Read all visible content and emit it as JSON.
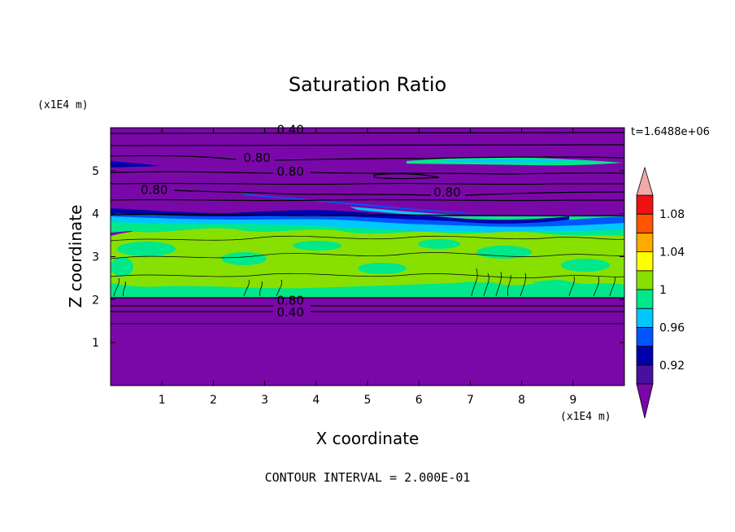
{
  "chart_data": {
    "type": "heatmap",
    "title": "Saturation Ratio",
    "xlabel": "X coordinate",
    "ylabel": "Z coordinate",
    "x_unit": "(x1E4 m)",
    "y_unit": "(x1E4 m)",
    "time_label": "t=1.6488e+06",
    "footer": "CONTOUR INTERVAL = 2.000E-01",
    "xlim": [
      0,
      10
    ],
    "ylim": [
      0,
      6
    ],
    "x_ticks": [
      "1",
      "2",
      "3",
      "4",
      "5",
      "6",
      "7",
      "8",
      "9"
    ],
    "y_ticks": [
      "1",
      "2",
      "3",
      "4",
      "5"
    ],
    "contour_labels": [
      {
        "text": "0.40",
        "x": 3.5,
        "z": 5.95
      },
      {
        "text": "0.80",
        "x": 2.85,
        "z": 5.3
      },
      {
        "text": "0.80",
        "x": 3.5,
        "z": 4.98
      },
      {
        "text": "0.80",
        "x": 0.85,
        "z": 4.55
      },
      {
        "text": "0.80",
        "x": 6.55,
        "z": 4.5
      },
      {
        "text": "0.80",
        "x": 3.5,
        "z": 1.98
      },
      {
        "text": "0.40",
        "x": 3.5,
        "z": 1.7
      }
    ],
    "colorbar": {
      "levels": [
        0.9,
        0.92,
        0.94,
        0.96,
        0.98,
        1.0,
        1.02,
        1.04,
        1.06,
        1.08,
        1.1
      ],
      "labels": [
        "0.92",
        "0.96",
        "1",
        "1.04",
        "1.08"
      ],
      "colors": [
        "#4b0fa0",
        "#0000aa",
        "#0055ff",
        "#00c8ff",
        "#00e88a",
        "#88e000",
        "#ffff00",
        "#ffaa00",
        "#ff5500",
        "#ee1111"
      ],
      "under_color": "#7a08a8",
      "over_color": "#f2a8a8"
    }
  }
}
